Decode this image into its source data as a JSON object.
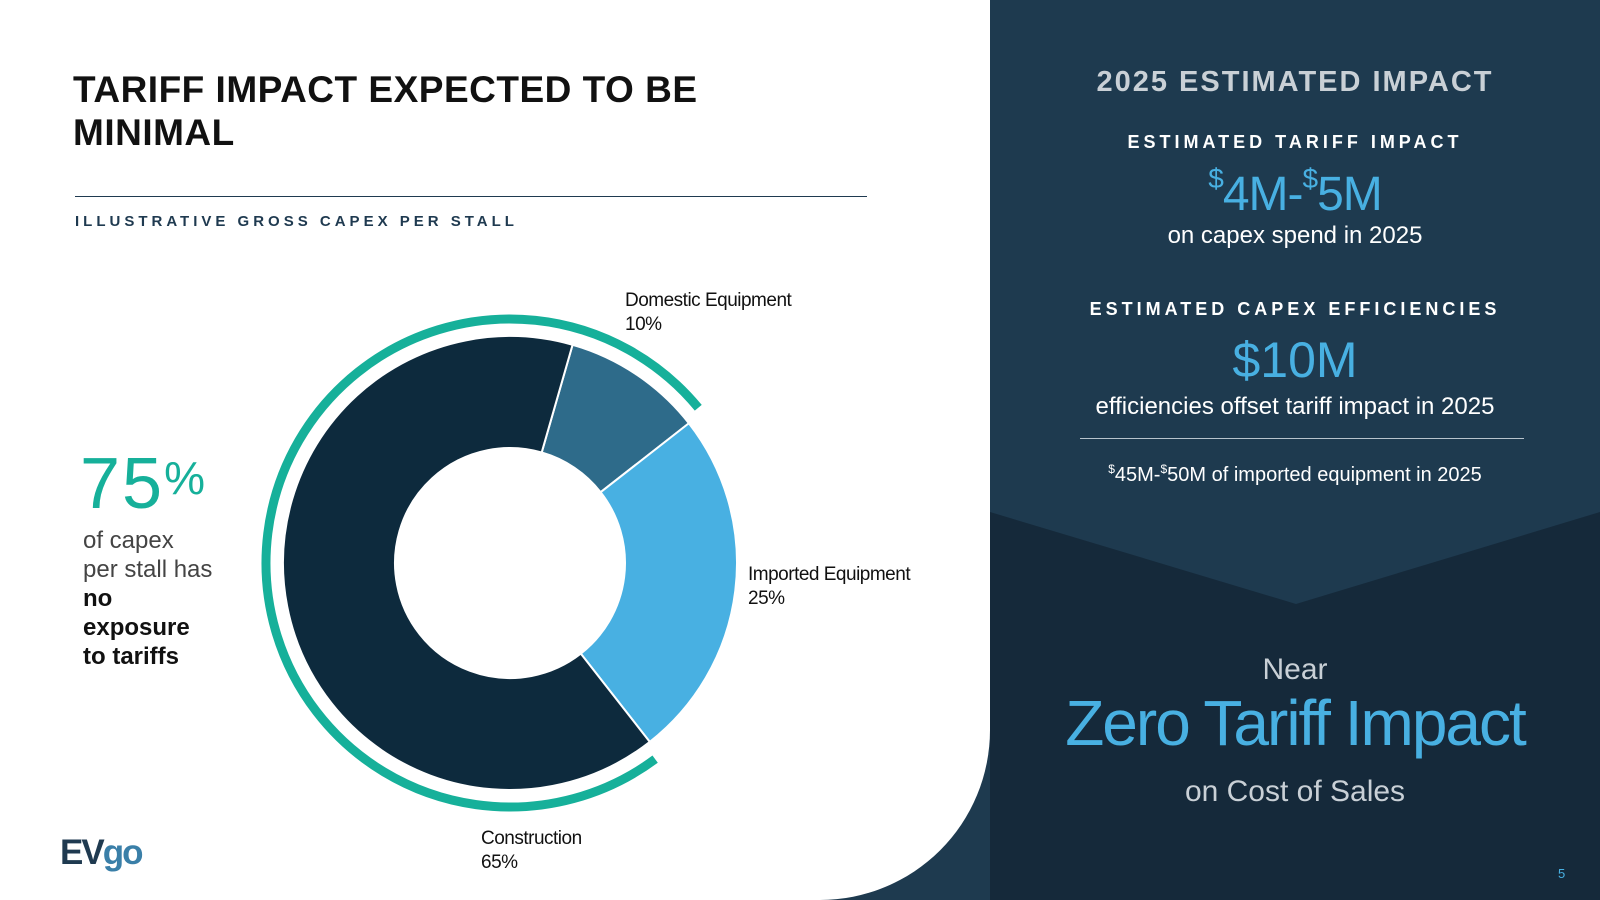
{
  "colors": {
    "construction": "#0d2a3d",
    "domestic": "#2e6b8a",
    "imported": "#48b0e2",
    "bracket": "#16b09a",
    "right_panel": "#1e3a4f",
    "accent_blue": "#48b0e2"
  },
  "left": {
    "title": "TARIFF IMPACT EXPECTED TO BE MINIMAL",
    "subheading": "ILLUSTRATIVE GROSS CAPEX PER STALL",
    "stat": {
      "number": "75",
      "unit": "%",
      "text_plain_1": "of capex",
      "text_plain_2": "per stall has",
      "text_emph_1": "no",
      "text_emph_2": "exposure",
      "text_emph_3": "to tariffs"
    },
    "logo": {
      "ev": "EV",
      "go": "go",
      "icon": "evgo-logo"
    }
  },
  "chart_data": {
    "type": "pie",
    "title": "ILLUSTRATIVE GROSS CAPEX PER STALL",
    "categories": [
      "Domestic Equipment",
      "Imported Equipment",
      "Construction"
    ],
    "values": [
      10,
      25,
      65
    ],
    "value_labels": [
      "10%",
      "25%",
      "65%"
    ],
    "colors": [
      "#2e6b8a",
      "#48b0e2",
      "#0d2a3d"
    ],
    "donut": true,
    "highlight_arc": {
      "covers": [
        "Construction",
        "Domestic Equipment"
      ],
      "total_percent": 75,
      "color": "#16b09a"
    },
    "legend": "none"
  },
  "right": {
    "header": "2025 ESTIMATED IMPACT",
    "tariff_label": "ESTIMATED TARIFF IMPACT",
    "tariff_value": {
      "dollar_sign_1": "$",
      "amount_1": "4M-",
      "dollar_sign_2": "$",
      "amount_2": "5M"
    },
    "tariff_desc": "on capex spend in 2025",
    "eff_label": "ESTIMATED CAPEX EFFICIENCIES",
    "eff_value": "$10M",
    "eff_desc": "efficiencies offset tariff impact in 2025",
    "imported_note": {
      "dollar_sign_1": "$",
      "amount_1": "45M-",
      "dollar_sign_2": "$",
      "amount_2": "50M of imported equipment in 2025"
    },
    "near": "Near",
    "zero": "Zero Tariff Impact",
    "cost": "on Cost of Sales"
  },
  "page_number": "5"
}
